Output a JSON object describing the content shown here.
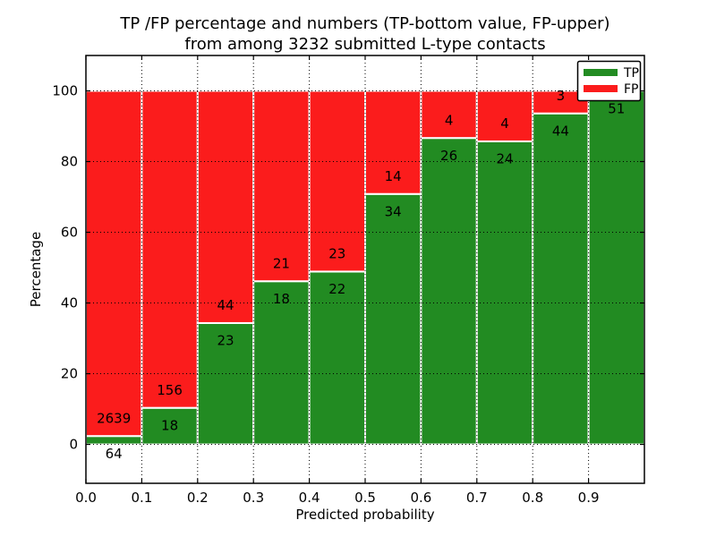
{
  "chart_data": {
    "type": "bar",
    "stacked": true,
    "title_line1": "TP /FP percentage and numbers (TP-bottom value, FP-upper)",
    "title_line2": "from among 3232 submitted L-type contacts",
    "submitted_total": 3232,
    "xlabel": "Predicted probability",
    "ylabel": "Percentage",
    "xlim": [
      0.0,
      1.0
    ],
    "ylim": [
      -11,
      110
    ],
    "xtick_labels": [
      "0.0",
      "0.1",
      "0.2",
      "0.3",
      "0.4",
      "0.5",
      "0.6",
      "0.7",
      "0.8",
      "0.9"
    ],
    "ytick_values": [
      0,
      20,
      40,
      60,
      80,
      100
    ],
    "grid_style": "dotted",
    "legend_position": "upper-right",
    "colors": {
      "tp": "#228B22",
      "fp": "#FB1C1C",
      "bar_edge": "#FFFFFF",
      "grid": "#000000"
    },
    "legend": {
      "entries": [
        {
          "label": "TP",
          "color_key": "tp"
        },
        {
          "label": "FP",
          "color_key": "fp"
        }
      ]
    },
    "bins": [
      {
        "x0": 0.0,
        "x1": 0.1,
        "tp": 64,
        "fp": 2639,
        "tp_pct": 2.4
      },
      {
        "x0": 0.1,
        "x1": 0.2,
        "tp": 18,
        "fp": 156,
        "tp_pct": 10.3
      },
      {
        "x0": 0.2,
        "x1": 0.3,
        "tp": 23,
        "fp": 44,
        "tp_pct": 34.3
      },
      {
        "x0": 0.3,
        "x1": 0.4,
        "tp": 18,
        "fp": 21,
        "tp_pct": 46.2
      },
      {
        "x0": 0.4,
        "x1": 0.5,
        "tp": 22,
        "fp": 23,
        "tp_pct": 48.9
      },
      {
        "x0": 0.5,
        "x1": 0.6,
        "tp": 34,
        "fp": 14,
        "tp_pct": 70.8
      },
      {
        "x0": 0.6,
        "x1": 0.7,
        "tp": 26,
        "fp": 4,
        "tp_pct": 86.7
      },
      {
        "x0": 0.7,
        "x1": 0.8,
        "tp": 24,
        "fp": 4,
        "tp_pct": 85.7
      },
      {
        "x0": 0.8,
        "x1": 0.9,
        "tp": 44,
        "fp": 3,
        "tp_pct": 93.6
      },
      {
        "x0": 0.9,
        "x1": 1.0,
        "tp": 51,
        "fp": 0,
        "tp_pct": 100.0
      }
    ]
  }
}
